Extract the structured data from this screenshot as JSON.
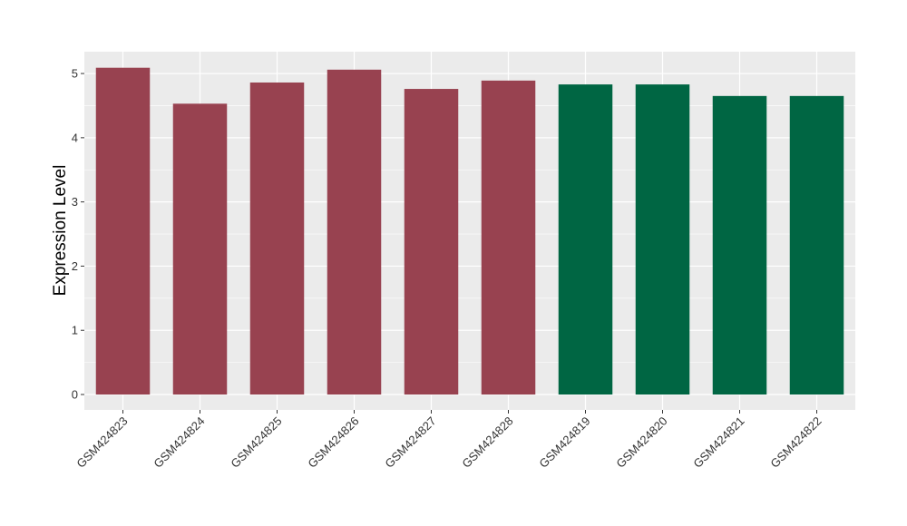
{
  "chart_data": {
    "type": "bar",
    "categories": [
      "GSM424823",
      "GSM424824",
      "GSM424825",
      "GSM424826",
      "GSM424827",
      "GSM424828",
      "GSM424819",
      "GSM424820",
      "GSM424821",
      "GSM424822"
    ],
    "values": [
      5.09,
      4.53,
      4.86,
      5.06,
      4.76,
      4.89,
      4.83,
      4.83,
      4.65,
      4.65
    ],
    "bar_groups": [
      1,
      1,
      1,
      1,
      1,
      1,
      2,
      2,
      2,
      2
    ],
    "group_colors": {
      "1": "#984250",
      "2": "#006643"
    },
    "title": "",
    "xlabel": "",
    "ylabel": "Expression Level",
    "ylim": [
      -0.24,
      5.34
    ],
    "yticks": [
      0,
      1,
      2,
      3,
      4,
      5
    ],
    "grid": true,
    "legend": "none",
    "panel_background": "#EBEBEB",
    "gridline_color": "#FFFFFF"
  }
}
